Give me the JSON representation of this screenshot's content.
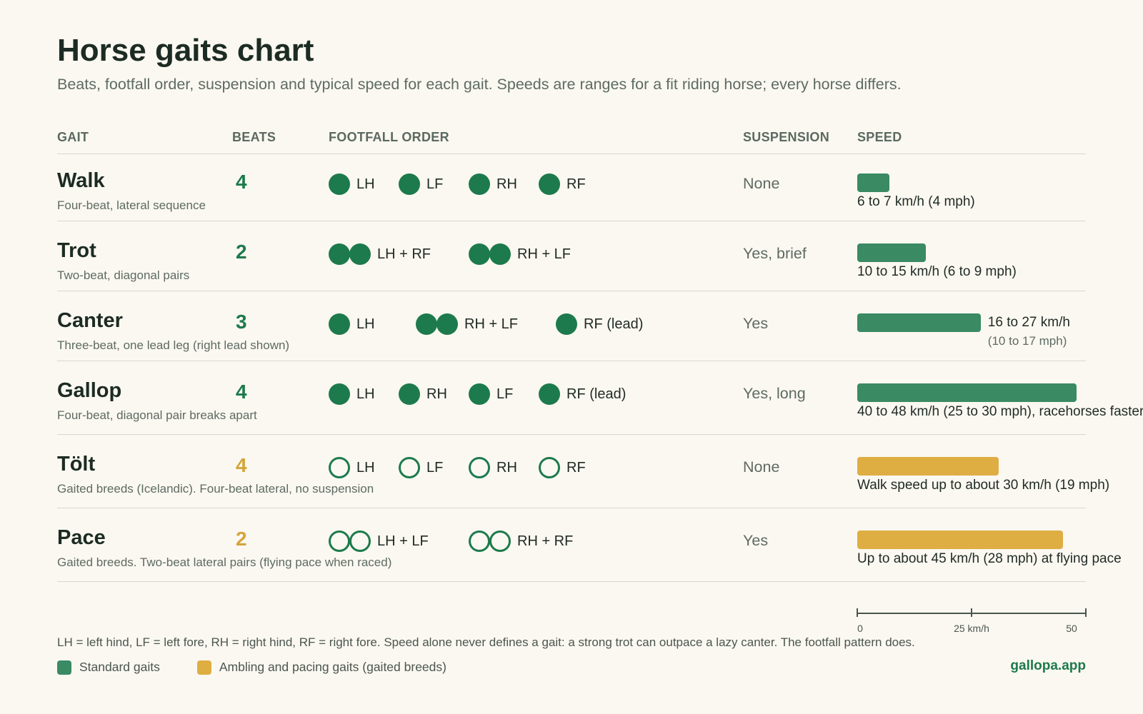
{
  "title": "Horse gaits chart",
  "subtitle": "Beats, footfall order, suspension and typical speed for each gait. Speeds are ranges for a fit riding horse; every horse differs.",
  "columns": {
    "gait": "GAIT",
    "beats": "BEATS",
    "footfall": "FOOTFALL ORDER",
    "suspension": "SUSPENSION",
    "speed": "SPEED"
  },
  "colors": {
    "standard": "#3a8a63",
    "gaited": "#deae43",
    "dot": "#1d7a4c",
    "beats_standard": "#1d7a4c",
    "beats_gaited": "#d3a53a"
  },
  "chart_data": {
    "type": "bar",
    "orientation": "horizontal",
    "categories": [
      "Walk",
      "Trot",
      "Canter",
      "Gallop",
      "Tölt",
      "Pace"
    ],
    "series": [
      {
        "name": "",
        "values": [
          7,
          15,
          27,
          48,
          31,
          45
        ]
      }
    ],
    "groups": [
      "standard",
      "standard",
      "standard",
      "standard",
      "gaited",
      "gaited"
    ],
    "xlim": [
      0,
      50
    ],
    "axis_ticks": [
      {
        "value": 0,
        "label": "0"
      },
      {
        "value": 25,
        "label": "25 km/h"
      },
      {
        "value": 50,
        "label": "50"
      }
    ],
    "legend_position": "bottom-left",
    "grid": false
  },
  "rows": [
    {
      "name": "Walk",
      "desc": "Four-beat, lateral sequence",
      "beats": "4",
      "group": "standard",
      "footfall": [
        {
          "dots": 1,
          "fill": "filled",
          "label": "LH"
        },
        {
          "dots": 1,
          "fill": "filled",
          "label": "LF"
        },
        {
          "dots": 1,
          "fill": "filled",
          "label": "RH"
        },
        {
          "dots": 1,
          "fill": "filled",
          "label": "RF"
        }
      ],
      "suspension": "None",
      "speed_label": "6 to 7 km/h (4 mph)",
      "speed_sub": ""
    },
    {
      "name": "Trot",
      "desc": "Two-beat, diagonal pairs",
      "beats": "2",
      "group": "standard",
      "footfall": [
        {
          "dots": 2,
          "fill": "filled",
          "label": "LH + RF"
        },
        {
          "dots": 2,
          "fill": "filled",
          "label": "RH + LF"
        }
      ],
      "suspension": "Yes, brief",
      "speed_label": "10 to 15 km/h (6 to 9 mph)",
      "speed_sub": ""
    },
    {
      "name": "Canter",
      "desc": "Three-beat, one lead leg (right lead shown)",
      "beats": "3",
      "group": "standard",
      "footfall": [
        {
          "dots": 1,
          "fill": "filled",
          "label": "LH"
        },
        {
          "dots": 2,
          "fill": "filled",
          "label": "RH + LF"
        },
        {
          "dots": 1,
          "fill": "filled",
          "label": "RF (lead)"
        }
      ],
      "suspension": "Yes",
      "speed_label": "16 to 27 km/h",
      "speed_sub": "(10 to 17 mph)"
    },
    {
      "name": "Gallop",
      "desc": "Four-beat, diagonal pair breaks apart",
      "beats": "4",
      "group": "standard",
      "footfall": [
        {
          "dots": 1,
          "fill": "filled",
          "label": "LH"
        },
        {
          "dots": 1,
          "fill": "filled",
          "label": "RH"
        },
        {
          "dots": 1,
          "fill": "filled",
          "label": "LF"
        },
        {
          "dots": 1,
          "fill": "filled",
          "label": "RF (lead)"
        }
      ],
      "suspension": "Yes, long",
      "speed_label": "40 to 48 km/h (25 to 30 mph), racehorses faster",
      "speed_sub": ""
    },
    {
      "name": "Tölt",
      "desc": "Gaited breeds (Icelandic). Four-beat lateral, no suspension",
      "beats": "4",
      "group": "gaited",
      "footfall": [
        {
          "dots": 1,
          "fill": "hollow",
          "label": "LH"
        },
        {
          "dots": 1,
          "fill": "hollow",
          "label": "LF"
        },
        {
          "dots": 1,
          "fill": "hollow",
          "label": "RH"
        },
        {
          "dots": 1,
          "fill": "hollow",
          "label": "RF"
        }
      ],
      "suspension": "None",
      "speed_label": "Walk speed up to about 30 km/h (19 mph)",
      "speed_sub": ""
    },
    {
      "name": "Pace",
      "desc": "Gaited breeds. Two-beat lateral pairs (flying pace when raced)",
      "beats": "2",
      "group": "gaited",
      "footfall": [
        {
          "dots": 2,
          "fill": "hollow",
          "label": "LH + LF"
        },
        {
          "dots": 2,
          "fill": "hollow",
          "label": "RH + RF"
        }
      ],
      "suspension": "Yes",
      "speed_label": "Up to about 45 km/h (28 mph) at flying pace",
      "speed_sub": ""
    }
  ],
  "footnote": "LH = left hind, LF = left fore, RH = right hind, RF = right fore. Speed alone never defines a gait: a strong trot can outpace a lazy canter. The footfall pattern does.",
  "legend": [
    {
      "label": "Standard gaits",
      "group": "standard"
    },
    {
      "label": "Ambling and pacing gaits (gaited breeds)",
      "group": "gaited"
    }
  ],
  "brand": "gallopa.app"
}
